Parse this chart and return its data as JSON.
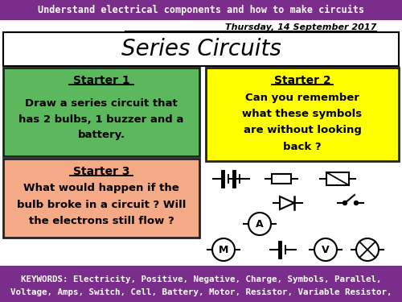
{
  "top_banner_color": "#7B2D8B",
  "top_banner_text": "Understand electrical components and how to make circuits",
  "top_banner_text_color": "#FFFFFF",
  "date_text": "Thursday, 14 September 2017",
  "title_text": "Series Circuits",
  "bg_color": "#FFFFFF",
  "bottom_banner_color": "#7B2D8B",
  "bottom_banner_text1": "KEYWORDS: Electricity, Positive, Negative, Charge, Symbols, Parallel,",
  "bottom_banner_text2": "Voltage, Amps, Switch, Cell, Battery, Motor, Resistor, Variable Resistor,",
  "bottom_banner_text_color": "#FFFFFF",
  "starter1_bg": "#5CB85C",
  "starter1_title": "Starter 1",
  "starter1_text": "Draw a series circuit that\nhas 2 bulbs, 1 buzzer and a\nbattery.",
  "starter1_text_color": "#000000",
  "starter2_bg": "#FFFF00",
  "starter2_title": "Starter 2",
  "starter2_text": "Can you remember\nwhat these symbols\nare without looking\nback ?",
  "starter2_text_color": "#000000",
  "starter3_bg": "#F4A987",
  "starter3_title": "Starter 3",
  "starter3_text": "What would happen if the\nbulb broke in a circuit ? Will\nthe electrons still flow ?",
  "starter3_text_color": "#000000"
}
